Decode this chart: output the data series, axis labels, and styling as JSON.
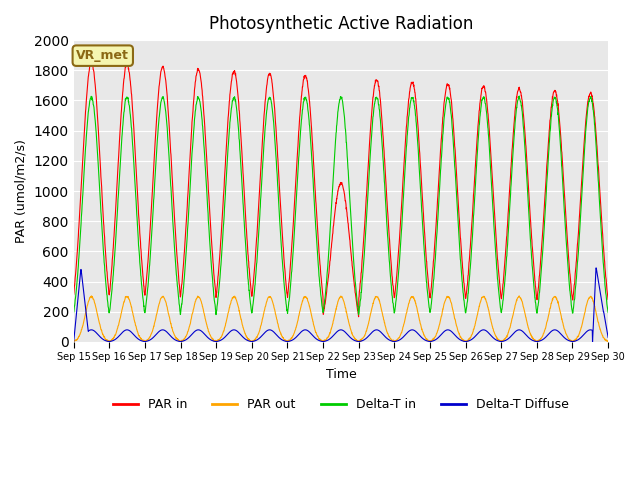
{
  "title": "Photosynthetic Active Radiation",
  "ylabel": "PAR (umol/m2/s)",
  "xlabel": "Time",
  "ylim": [
    0,
    2000
  ],
  "background_color": "#e8e8e8",
  "annotation_text": "VR_met",
  "annotation_bg": "#f5f5b0",
  "annotation_border": "#8B6914",
  "n_days": 15,
  "day_start": 15,
  "colors": {
    "PAR_in": "#ff0000",
    "PAR_out": "#ffa500",
    "Delta_T_in": "#00cc00",
    "Delta_T_Diffuse": "#0000cc"
  },
  "legend_labels": [
    "PAR in",
    "PAR out",
    "Delta-T in",
    "Delta-T Diffuse"
  ],
  "tick_labels": [
    "Sep 15",
    "Sep 16",
    "Sep 17",
    "Sep 18",
    "Sep 19",
    "Sep 20",
    "Sep 21",
    "Sep 22",
    "Sep 23",
    "Sep 24",
    "Sep 25",
    "Sep 26",
    "Sep 27",
    "Sep 28",
    "Sep 29",
    "Sep 30"
  ]
}
